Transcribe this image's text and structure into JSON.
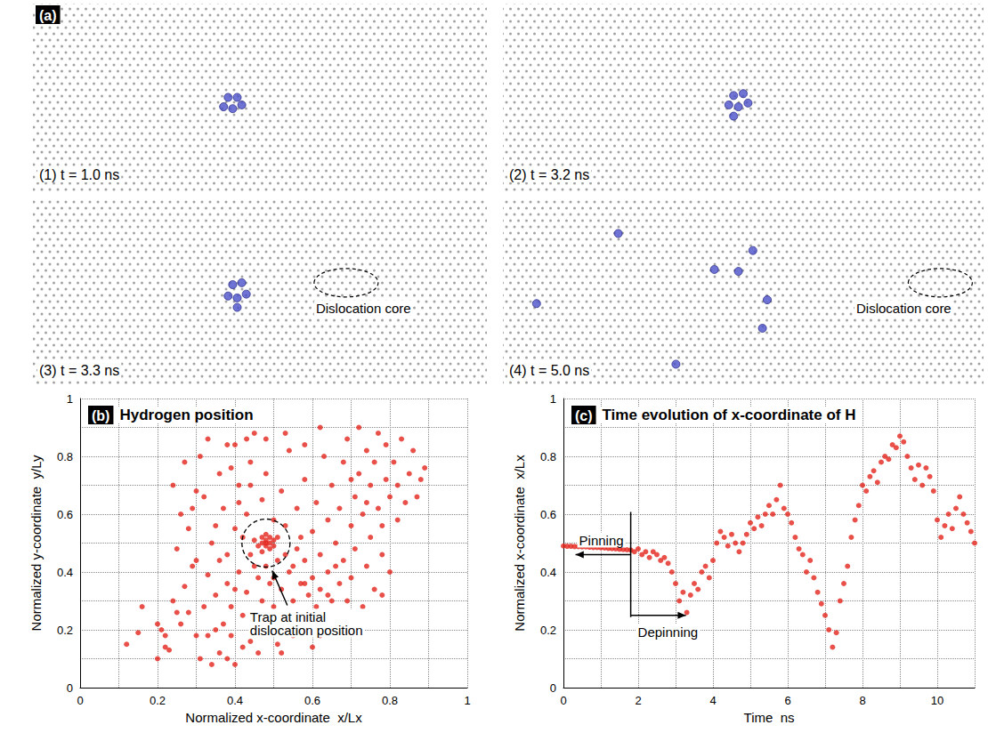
{
  "snapshot_panel": {
    "letter": "(a)",
    "xlim": [
      0,
      1
    ],
    "ylim": [
      0,
      1
    ],
    "tick_labels": false,
    "hydrogen_color": "#4b50c9",
    "snapshots": [
      {
        "label": "(1) t = 1.0 ns",
        "hydrogen": [
          [
            0.43,
            0.5
          ],
          [
            0.45,
            0.5
          ],
          [
            0.42,
            0.45
          ],
          [
            0.44,
            0.44
          ],
          [
            0.46,
            0.46
          ]
        ]
      },
      {
        "label": "(2) t = 3.2 ns",
        "hydrogen": [
          [
            0.48,
            0.51
          ],
          [
            0.5,
            0.52
          ],
          [
            0.47,
            0.46
          ],
          [
            0.49,
            0.45
          ],
          [
            0.51,
            0.47
          ],
          [
            0.48,
            0.4
          ]
        ]
      },
      {
        "label": "(3) t = 3.3 ns",
        "hydrogen": [
          [
            0.44,
            0.54
          ],
          [
            0.46,
            0.55
          ],
          [
            0.43,
            0.48
          ],
          [
            0.45,
            0.47
          ],
          [
            0.47,
            0.49
          ],
          [
            0.45,
            0.42
          ]
        ],
        "dislocation_core": {
          "label": "Dislocation core",
          "x": 0.69,
          "y": 0.55
        }
      },
      {
        "label": "(4) t = 5.0 ns",
        "hydrogen": [
          [
            0.24,
            0.81
          ],
          [
            0.07,
            0.44
          ],
          [
            0.52,
            0.72
          ],
          [
            0.44,
            0.62
          ],
          [
            0.49,
            0.61
          ],
          [
            0.55,
            0.46
          ],
          [
            0.54,
            0.31
          ],
          [
            0.36,
            0.12
          ]
        ],
        "dislocation_core": {
          "label": "Dislocation core",
          "x": 0.91,
          "y": 0.55
        }
      }
    ]
  },
  "chart_data": [
    {
      "type": "scatter",
      "letter": "(b)",
      "title": "Hydrogen position",
      "x_label": "Normalized x-coordinate  x/Lx",
      "y_label": "Normalized y-coordinate  y/Ly",
      "color": "#e3241b",
      "marker": "circle",
      "grid": true,
      "xlim": [
        0,
        1
      ],
      "xticks": [
        0,
        0.2,
        0.4,
        0.6,
        0.8,
        1
      ],
      "ylim": [
        0,
        1
      ],
      "yticks": [
        0,
        0.2,
        0.4,
        0.6,
        0.8,
        1
      ],
      "points": [
        [
          0.47,
          0.5
        ],
        [
          0.48,
          0.51
        ],
        [
          0.49,
          0.5
        ],
        [
          0.48,
          0.49
        ],
        [
          0.47,
          0.52
        ],
        [
          0.5,
          0.51
        ],
        [
          0.46,
          0.49
        ],
        [
          0.49,
          0.48
        ],
        [
          0.48,
          0.53
        ],
        [
          0.5,
          0.49
        ],
        [
          0.47,
          0.47
        ],
        [
          0.51,
          0.52
        ],
        [
          0.45,
          0.51
        ],
        [
          0.49,
          0.52
        ],
        [
          0.48,
          0.5
        ],
        [
          0.12,
          0.15
        ],
        [
          0.15,
          0.19
        ],
        [
          0.16,
          0.28
        ],
        [
          0.2,
          0.1
        ],
        [
          0.21,
          0.2
        ],
        [
          0.2,
          0.22
        ],
        [
          0.22,
          0.18
        ],
        [
          0.23,
          0.13
        ],
        [
          0.24,
          0.3
        ],
        [
          0.25,
          0.26
        ],
        [
          0.26,
          0.22
        ],
        [
          0.27,
          0.35
        ],
        [
          0.25,
          0.48
        ],
        [
          0.26,
          0.6
        ],
        [
          0.24,
          0.7
        ],
        [
          0.27,
          0.78
        ],
        [
          0.28,
          0.55
        ],
        [
          0.29,
          0.42
        ],
        [
          0.3,
          0.18
        ],
        [
          0.31,
          0.1
        ],
        [
          0.32,
          0.28
        ],
        [
          0.33,
          0.39
        ],
        [
          0.3,
          0.68
        ],
        [
          0.29,
          0.62
        ],
        [
          0.31,
          0.8
        ],
        [
          0.33,
          0.86
        ],
        [
          0.34,
          0.5
        ],
        [
          0.35,
          0.32
        ],
        [
          0.35,
          0.2
        ],
        [
          0.36,
          0.12
        ],
        [
          0.37,
          0.62
        ],
        [
          0.36,
          0.74
        ],
        [
          0.38,
          0.46
        ],
        [
          0.38,
          0.36
        ],
        [
          0.39,
          0.28
        ],
        [
          0.39,
          0.18
        ],
        [
          0.4,
          0.08
        ],
        [
          0.4,
          0.55
        ],
        [
          0.4,
          0.84
        ],
        [
          0.41,
          0.7
        ],
        [
          0.41,
          0.4
        ],
        [
          0.42,
          0.25
        ],
        [
          0.42,
          0.14
        ],
        [
          0.43,
          0.6
        ],
        [
          0.43,
          0.33
        ],
        [
          0.44,
          0.46
        ],
        [
          0.44,
          0.78
        ],
        [
          0.45,
          0.88
        ],
        [
          0.45,
          0.22
        ],
        [
          0.46,
          0.38
        ],
        [
          0.46,
          0.12
        ],
        [
          0.47,
          0.3
        ],
        [
          0.47,
          0.65
        ],
        [
          0.48,
          0.42
        ],
        [
          0.48,
          0.74
        ],
        [
          0.49,
          0.2
        ],
        [
          0.49,
          0.36
        ],
        [
          0.5,
          0.58
        ],
        [
          0.5,
          0.28
        ],
        [
          0.51,
          0.44
        ],
        [
          0.51,
          0.15
        ],
        [
          0.52,
          0.68
        ],
        [
          0.52,
          0.34
        ],
        [
          0.53,
          0.24
        ],
        [
          0.53,
          0.56
        ],
        [
          0.54,
          0.4
        ],
        [
          0.54,
          0.82
        ],
        [
          0.55,
          0.3
        ],
        [
          0.55,
          0.18
        ],
        [
          0.56,
          0.48
        ],
        [
          0.56,
          0.62
        ],
        [
          0.57,
          0.36
        ],
        [
          0.57,
          0.26
        ],
        [
          0.58,
          0.72
        ],
        [
          0.58,
          0.44
        ],
        [
          0.59,
          0.32
        ],
        [
          0.59,
          0.2
        ],
        [
          0.6,
          0.54
        ],
        [
          0.6,
          0.38
        ],
        [
          0.61,
          0.28
        ],
        [
          0.61,
          0.64
        ],
        [
          0.62,
          0.46
        ],
        [
          0.62,
          0.34
        ],
        [
          0.63,
          0.24
        ],
        [
          0.63,
          0.8
        ],
        [
          0.64,
          0.4
        ],
        [
          0.64,
          0.58
        ],
        [
          0.65,
          0.3
        ],
        [
          0.65,
          0.7
        ],
        [
          0.66,
          0.5
        ],
        [
          0.66,
          0.22
        ],
        [
          0.67,
          0.36
        ],
        [
          0.67,
          0.62
        ],
        [
          0.68,
          0.44
        ],
        [
          0.68,
          0.78
        ],
        [
          0.69,
          0.3
        ],
        [
          0.69,
          0.86
        ],
        [
          0.7,
          0.56
        ],
        [
          0.7,
          0.38
        ],
        [
          0.71,
          0.66
        ],
        [
          0.71,
          0.48
        ],
        [
          0.72,
          0.74
        ],
        [
          0.72,
          0.9
        ],
        [
          0.73,
          0.28
        ],
        [
          0.73,
          0.6
        ],
        [
          0.74,
          0.82
        ],
        [
          0.74,
          0.42
        ],
        [
          0.75,
          0.52
        ],
        [
          0.75,
          0.7
        ],
        [
          0.76,
          0.78
        ],
        [
          0.76,
          0.34
        ],
        [
          0.77,
          0.88
        ],
        [
          0.77,
          0.62
        ],
        [
          0.78,
          0.46
        ],
        [
          0.78,
          0.56
        ],
        [
          0.79,
          0.72
        ],
        [
          0.79,
          0.84
        ],
        [
          0.8,
          0.66
        ],
        [
          0.8,
          0.4
        ],
        [
          0.81,
          0.78
        ],
        [
          0.82,
          0.58
        ],
        [
          0.82,
          0.7
        ],
        [
          0.83,
          0.86
        ],
        [
          0.84,
          0.64
        ],
        [
          0.85,
          0.74
        ],
        [
          0.86,
          0.82
        ],
        [
          0.87,
          0.66
        ],
        [
          0.88,
          0.72
        ],
        [
          0.89,
          0.76
        ],
        [
          0.44,
          0.16
        ],
        [
          0.38,
          0.1
        ],
        [
          0.34,
          0.08
        ],
        [
          0.42,
          0.52
        ],
        [
          0.36,
          0.44
        ],
        [
          0.32,
          0.66
        ],
        [
          0.28,
          0.26
        ],
        [
          0.22,
          0.14
        ],
        [
          0.43,
          0.86
        ],
        [
          0.39,
          0.76
        ],
        [
          0.41,
          0.64
        ],
        [
          0.53,
          0.46
        ],
        [
          0.57,
          0.52
        ],
        [
          0.6,
          0.14
        ],
        [
          0.62,
          0.18
        ],
        [
          0.64,
          0.32
        ],
        [
          0.66,
          0.42
        ],
        [
          0.52,
          0.12
        ],
        [
          0.46,
          0.26
        ],
        [
          0.5,
          0.38
        ],
        [
          0.55,
          0.42
        ],
        [
          0.58,
          0.36
        ],
        [
          0.45,
          0.42
        ],
        [
          0.4,
          0.34
        ],
        [
          0.37,
          0.22
        ],
        [
          0.33,
          0.18
        ],
        [
          0.3,
          0.44
        ],
        [
          0.35,
          0.56
        ],
        [
          0.38,
          0.84
        ],
        [
          0.44,
          0.7
        ],
        [
          0.48,
          0.86
        ],
        [
          0.53,
          0.88
        ],
        [
          0.58,
          0.84
        ],
        [
          0.62,
          0.9
        ],
        [
          0.7,
          0.72
        ],
        [
          0.74,
          0.64
        ],
        [
          0.78,
          0.32
        ],
        [
          0.72,
          0.22
        ]
      ],
      "annotations": [
        {
          "text": "Trap at initial\ndislocation position",
          "x": 0.48,
          "y": 0.5
        }
      ]
    },
    {
      "type": "scatter",
      "letter": "(c)",
      "title": "Time evolution of x-coordinate of H",
      "x_label": "Time  ns",
      "y_label": "Normalized x-coordinate  x/Lx",
      "color": "#e3241b",
      "marker": "circle",
      "grid": true,
      "xlim": [
        0,
        11
      ],
      "xticks": [
        0,
        2,
        4,
        6,
        8,
        10
      ],
      "ylim": [
        0,
        1
      ],
      "yticks": [
        0,
        0.2,
        0.4,
        0.6,
        0.8,
        1
      ],
      "x": [
        0,
        0.1,
        0.2,
        0.3,
        0.4,
        0.5,
        0.6,
        0.7,
        0.8,
        0.9,
        1.0,
        1.1,
        1.2,
        1.3,
        1.4,
        1.5,
        1.6,
        1.7,
        1.8,
        1.9,
        2.0,
        2.1,
        2.2,
        2.3,
        2.4,
        2.5,
        2.6,
        2.7,
        2.8,
        2.9,
        3.0,
        3.1,
        3.2,
        3.3,
        3.4,
        3.5,
        3.6,
        3.7,
        3.8,
        3.9,
        4.0,
        4.1,
        4.2,
        4.3,
        4.4,
        4.5,
        4.6,
        4.7,
        4.8,
        4.9,
        5.0,
        5.1,
        5.2,
        5.3,
        5.4,
        5.5,
        5.6,
        5.7,
        5.8,
        5.9,
        6.0,
        6.1,
        6.2,
        6.3,
        6.4,
        6.5,
        6.6,
        6.7,
        6.8,
        6.9,
        7.0,
        7.1,
        7.2,
        7.3,
        7.4,
        7.5,
        7.6,
        7.7,
        7.8,
        7.9,
        8.0,
        8.1,
        8.2,
        8.3,
        8.4,
        8.5,
        8.6,
        8.7,
        8.8,
        8.9,
        9.0,
        9.1,
        9.2,
        9.3,
        9.4,
        9.5,
        9.6,
        9.7,
        9.8,
        9.9,
        10.0,
        10.1,
        10.2,
        10.3,
        10.4,
        10.5,
        10.6,
        10.7,
        10.8,
        10.9,
        11.0
      ],
      "values": [
        0.49,
        0.489,
        0.489,
        0.488,
        0.488,
        0.487,
        0.487,
        0.486,
        0.485,
        0.485,
        0.484,
        0.483,
        0.482,
        0.481,
        0.48,
        0.479,
        0.478,
        0.477,
        0.476,
        0.47,
        0.48,
        0.46,
        0.47,
        0.45,
        0.47,
        0.46,
        0.44,
        0.45,
        0.43,
        0.4,
        0.36,
        0.3,
        0.33,
        0.26,
        0.32,
        0.36,
        0.34,
        0.4,
        0.42,
        0.38,
        0.44,
        0.5,
        0.54,
        0.52,
        0.49,
        0.53,
        0.5,
        0.47,
        0.5,
        0.53,
        0.57,
        0.55,
        0.59,
        0.56,
        0.6,
        0.63,
        0.6,
        0.65,
        0.7,
        0.62,
        0.6,
        0.57,
        0.52,
        0.48,
        0.46,
        0.4,
        0.44,
        0.38,
        0.33,
        0.29,
        0.25,
        0.2,
        0.14,
        0.19,
        0.3,
        0.36,
        0.42,
        0.52,
        0.58,
        0.63,
        0.7,
        0.68,
        0.73,
        0.75,
        0.71,
        0.78,
        0.8,
        0.79,
        0.84,
        0.83,
        0.87,
        0.85,
        0.8,
        0.76,
        0.72,
        0.77,
        0.7,
        0.76,
        0.73,
        0.68,
        0.58,
        0.52,
        0.56,
        0.6,
        0.55,
        0.62,
        0.66,
        0.6,
        0.57,
        0.54,
        0.5
      ],
      "annotations": [
        {
          "text": "Pinning",
          "x": 1.8,
          "y": 0.46,
          "direction": "left"
        },
        {
          "text": "Depinning",
          "x": 1.8,
          "y": 0.25,
          "direction": "right"
        }
      ]
    }
  ]
}
